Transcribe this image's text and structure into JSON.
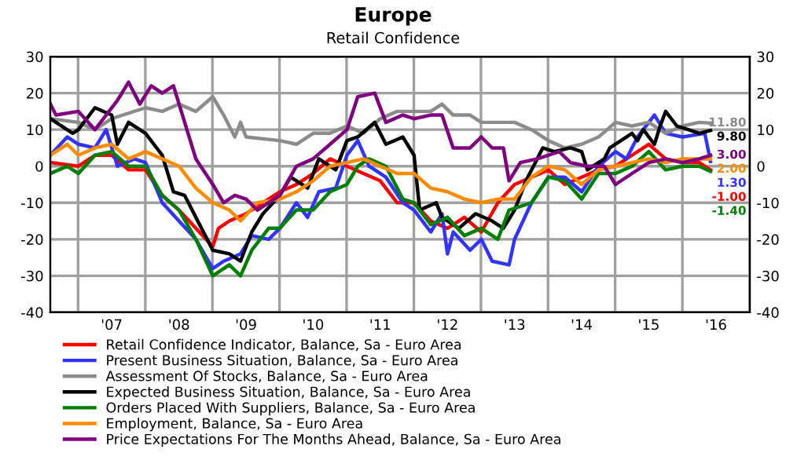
{
  "chart_data": {
    "type": "line",
    "title": "Europe",
    "subtitle": "Retail Confidence",
    "xlim": [
      "2006-08",
      "2017-01"
    ],
    "xticks": [
      {
        "value": "2007-07",
        "label": "'07"
      },
      {
        "value": "2008-07",
        "label": "'08"
      },
      {
        "value": "2009-07",
        "label": "'09"
      },
      {
        "value": "2010-07",
        "label": "'10"
      },
      {
        "value": "2011-07",
        "label": "'11"
      },
      {
        "value": "2012-07",
        "label": "'12"
      },
      {
        "value": "2013-07",
        "label": "'13"
      },
      {
        "value": "2014-07",
        "label": "'14"
      },
      {
        "value": "2015-07",
        "label": "'15"
      },
      {
        "value": "2016-07",
        "label": "'16"
      }
    ],
    "ylim": [
      -40,
      30
    ],
    "yticks": [
      -40,
      -30,
      -20,
      -10,
      0,
      10,
      20,
      30
    ],
    "y2lim": [
      -40,
      30
    ],
    "y2ticks": [
      -40,
      -30,
      -20,
      -10,
      0,
      10,
      20,
      30
    ],
    "grid": true,
    "legend": "bottom",
    "marker": "none",
    "line_style": "solid",
    "series": [
      {
        "name": "Retail Confidence Indicator, Balance, Sa - Euro Area",
        "color": "#ff0000",
        "x": [
          "2006-08",
          "2007-01",
          "2007-04",
          "2007-07",
          "2007-10",
          "2008-01",
          "2008-04",
          "2008-07",
          "2008-10",
          "2009-01",
          "2009-02",
          "2009-04",
          "2009-07",
          "2009-10",
          "2010-01",
          "2010-04",
          "2010-07",
          "2010-10",
          "2011-01",
          "2011-04",
          "2011-07",
          "2011-10",
          "2012-01",
          "2012-04",
          "2012-07",
          "2012-10",
          "2013-01",
          "2013-04",
          "2013-07",
          "2013-10",
          "2014-01",
          "2014-04",
          "2014-07",
          "2014-10",
          "2015-01",
          "2015-04",
          "2015-07",
          "2015-10",
          "2016-01",
          "2016-04",
          "2016-06"
        ],
        "values": [
          1,
          0,
          3,
          3,
          -1,
          -1,
          -8,
          -12,
          -17,
          -22,
          -17,
          -15,
          -13,
          -10,
          -7,
          -5,
          -2,
          2,
          0,
          -2,
          -4,
          -10,
          -10,
          -15,
          -17,
          -14,
          -18,
          -10,
          -5,
          -3,
          -1,
          -5,
          -3,
          -1,
          0,
          3,
          6,
          2,
          1,
          1,
          -1.0
        ],
        "value_labels": [
          null,
          null,
          null,
          null,
          null,
          null,
          null,
          null,
          null,
          null,
          null,
          null,
          null,
          null,
          null,
          null,
          null,
          null,
          null,
          null,
          null,
          null,
          null,
          null,
          null,
          null,
          null,
          null,
          null,
          null,
          null,
          null,
          null,
          null,
          null,
          null,
          null,
          null,
          null,
          null,
          "-1.00"
        ]
      },
      {
        "name": "Present Business Situation, Balance, Sa - Euro Area",
        "color": "#3333ff",
        "x": [
          "2006-08",
          "2006-11",
          "2007-01",
          "2007-04",
          "2007-06",
          "2007-08",
          "2007-11",
          "2008-01",
          "2008-04",
          "2008-07",
          "2008-10",
          "2009-01",
          "2009-03",
          "2009-06",
          "2009-08",
          "2009-11",
          "2010-01",
          "2010-04",
          "2010-06",
          "2010-08",
          "2010-11",
          "2011-01",
          "2011-03",
          "2011-05",
          "2011-08",
          "2011-11",
          "2012-01",
          "2012-04",
          "2012-06",
          "2012-07",
          "2012-08",
          "2012-11",
          "2013-01",
          "2013-03",
          "2013-06",
          "2013-07",
          "2013-10",
          "2014-01",
          "2014-04",
          "2014-07",
          "2014-10",
          "2015-01",
          "2015-03",
          "2015-05",
          "2015-08",
          "2015-10",
          "2016-01",
          "2016-05",
          "2016-06"
        ],
        "values": [
          3,
          8,
          6,
          5,
          10,
          0,
          2,
          1,
          -10,
          -15,
          -20,
          -28,
          -26,
          -24,
          -19,
          -20,
          -17,
          -10,
          -14,
          -7,
          -6,
          3,
          7,
          0,
          -3,
          -10,
          -12,
          -18,
          -13,
          -24,
          -18,
          -23,
          -20,
          -26,
          -27,
          -20,
          -10,
          -3,
          -3,
          -7,
          0,
          4,
          2,
          8,
          14,
          9,
          8,
          9,
          1.3
        ],
        "value_labels": [
          null,
          null,
          null,
          null,
          null,
          null,
          null,
          null,
          null,
          null,
          null,
          null,
          null,
          null,
          null,
          null,
          null,
          null,
          null,
          null,
          null,
          null,
          null,
          null,
          null,
          null,
          null,
          null,
          null,
          null,
          null,
          null,
          null,
          null,
          null,
          null,
          null,
          null,
          null,
          null,
          null,
          null,
          null,
          null,
          null,
          null,
          null,
          null,
          "1.30"
        ]
      },
      {
        "name": "Assessment Of Stocks, Balance, Sa - Euro Area",
        "color": "#8c8c8c",
        "x": [
          "2006-08",
          "2007-01",
          "2007-04",
          "2007-07",
          "2008-01",
          "2008-04",
          "2008-07",
          "2008-10",
          "2009-01",
          "2009-03",
          "2009-05",
          "2009-06",
          "2009-07",
          "2010-01",
          "2010-04",
          "2010-07",
          "2010-10",
          "2011-01",
          "2011-04",
          "2011-07",
          "2011-10",
          "2012-01",
          "2012-04",
          "2012-06",
          "2012-08",
          "2012-11",
          "2013-01",
          "2013-04",
          "2013-07",
          "2013-10",
          "2014-01",
          "2014-04",
          "2014-07",
          "2014-10",
          "2015-01",
          "2015-04",
          "2015-07",
          "2015-10",
          "2016-01",
          "2016-04",
          "2016-06"
        ],
        "values": [
          13,
          12,
          10,
          13,
          16,
          15,
          17,
          15,
          19,
          14,
          8,
          12,
          8,
          7,
          6,
          9,
          9,
          11,
          9,
          13,
          15,
          15,
          15,
          17,
          14,
          14,
          12,
          12,
          12,
          10,
          7,
          5,
          6,
          8,
          12,
          11,
          12,
          9,
          11,
          12,
          11.8
        ],
        "value_labels": [
          null,
          null,
          null,
          null,
          null,
          null,
          null,
          null,
          null,
          null,
          null,
          null,
          null,
          null,
          null,
          null,
          null,
          null,
          null,
          null,
          null,
          null,
          null,
          null,
          null,
          null,
          null,
          null,
          null,
          null,
          null,
          null,
          null,
          null,
          null,
          null,
          null,
          null,
          null,
          null,
          "11.80"
        ]
      },
      {
        "name": "Expected Business Situation, Balance, Sa - Euro Area",
        "color": "#000000",
        "x": [
          "2006-08",
          "2006-12",
          "2007-01",
          "2007-04",
          "2007-07",
          "2007-08",
          "2007-10",
          "2008-01",
          "2008-04",
          "2008-06",
          "2008-08",
          "2008-10",
          "2009-01",
          "2009-04",
          "2009-06",
          "2009-08",
          "2009-10",
          "2010-01",
          "2010-03",
          "2010-06",
          "2010-08",
          "2010-11",
          "2011-01",
          "2011-03",
          "2011-06",
          "2011-08",
          "2011-11",
          "2012-01",
          "2012-02",
          "2012-05",
          "2012-06",
          "2012-09",
          "2012-12",
          "2013-03",
          "2013-05",
          "2013-07",
          "2013-09",
          "2013-11",
          "2013-12",
          "2014-02",
          "2014-05",
          "2014-07",
          "2014-08",
          "2014-11",
          "2014-12",
          "2015-04",
          "2015-05",
          "2015-06",
          "2015-08",
          "2015-09",
          "2015-10",
          "2015-12",
          "2016-02",
          "2016-04",
          "2016-06"
        ],
        "values": [
          13,
          9,
          10,
          16,
          14,
          6,
          12,
          9,
          3,
          -7,
          -8,
          -14,
          -23,
          -24,
          -26,
          -18,
          -13,
          -8,
          -3,
          -6,
          2,
          -1,
          7,
          8,
          12,
          6,
          8,
          3,
          -12,
          -10,
          -14,
          -17,
          -13,
          -15,
          -17,
          -12,
          -4,
          2,
          5,
          4,
          5,
          4,
          -1,
          2,
          5,
          9,
          7,
          10,
          6,
          11,
          15,
          11,
          10,
          9,
          9.8
        ],
        "value_labels": [
          null,
          null,
          null,
          null,
          null,
          null,
          null,
          null,
          null,
          null,
          null,
          null,
          null,
          null,
          null,
          null,
          null,
          null,
          null,
          null,
          null,
          null,
          null,
          null,
          null,
          null,
          null,
          null,
          null,
          null,
          null,
          null,
          null,
          null,
          null,
          null,
          null,
          null,
          null,
          null,
          null,
          null,
          null,
          null,
          null,
          null,
          null,
          null,
          null,
          null,
          null,
          null,
          null,
          null,
          "9.80"
        ]
      },
      {
        "name": "Orders Placed With Suppliers, Balance, Sa - Euro Area",
        "color": "#008000",
        "x": [
          "2006-08",
          "2006-11",
          "2007-01",
          "2007-04",
          "2007-07",
          "2007-10",
          "2008-01",
          "2008-04",
          "2008-07",
          "2008-10",
          "2009-01",
          "2009-04",
          "2009-06",
          "2009-08",
          "2009-11",
          "2010-01",
          "2010-04",
          "2010-07",
          "2010-10",
          "2011-01",
          "2011-03",
          "2011-05",
          "2011-08",
          "2011-11",
          "2012-01",
          "2012-04",
          "2012-07",
          "2012-10",
          "2013-01",
          "2013-04",
          "2013-06",
          "2013-10",
          "2014-01",
          "2014-04",
          "2014-07",
          "2014-10",
          "2015-01",
          "2015-04",
          "2015-07",
          "2015-10",
          "2016-01",
          "2016-04",
          "2016-06"
        ],
        "values": [
          -2,
          0,
          -2,
          3,
          4,
          0,
          0,
          -8,
          -12,
          -20,
          -30,
          -27,
          -30,
          -23,
          -17,
          -17,
          -12,
          -12,
          -7,
          -5,
          0,
          2,
          0,
          -9,
          -10,
          -16,
          -14,
          -19,
          -17,
          -20,
          -12,
          -10,
          -3,
          -4,
          -9,
          -2,
          -2,
          0,
          4,
          -1,
          0,
          0,
          -1.4
        ],
        "value_labels": [
          null,
          null,
          null,
          null,
          null,
          null,
          null,
          null,
          null,
          null,
          null,
          null,
          null,
          null,
          null,
          null,
          null,
          null,
          null,
          null,
          null,
          null,
          null,
          null,
          null,
          null,
          null,
          null,
          null,
          null,
          null,
          null,
          null,
          null,
          null,
          null,
          null,
          null,
          null,
          null,
          null,
          null,
          "-1.40"
        ]
      },
      {
        "name": "Employment, Balance, Sa - Euro Area",
        "color": "#ff8c00",
        "x": [
          "2006-08",
          "2006-11",
          "2007-01",
          "2007-04",
          "2007-07",
          "2007-10",
          "2008-01",
          "2008-04",
          "2008-07",
          "2008-10",
          "2009-01",
          "2009-04",
          "2009-06",
          "2009-09",
          "2010-01",
          "2010-04",
          "2010-07",
          "2010-10",
          "2011-01",
          "2011-04",
          "2011-07",
          "2011-10",
          "2012-01",
          "2012-04",
          "2012-07",
          "2012-10",
          "2013-01",
          "2013-04",
          "2013-07",
          "2013-10",
          "2014-01",
          "2014-04",
          "2014-07",
          "2014-10",
          "2015-01",
          "2015-04",
          "2015-07",
          "2015-10",
          "2016-01",
          "2016-04",
          "2016-06"
        ],
        "values": [
          3,
          6,
          3,
          5,
          6,
          2,
          4,
          2,
          0,
          -6,
          -10,
          -12,
          -15,
          -10,
          -9,
          -7,
          -4,
          0,
          1,
          2,
          0,
          -2,
          -2,
          -6,
          -7,
          -9,
          -10,
          -9,
          -9,
          -3,
          0,
          -1,
          -5,
          -1,
          0,
          1,
          2,
          1,
          2,
          2,
          2.0
        ],
        "value_labels": [
          null,
          null,
          null,
          null,
          null,
          null,
          null,
          null,
          null,
          null,
          null,
          null,
          null,
          null,
          null,
          null,
          null,
          null,
          null,
          null,
          null,
          null,
          null,
          null,
          null,
          null,
          null,
          null,
          null,
          null,
          null,
          null,
          null,
          null,
          null,
          null,
          null,
          null,
          null,
          null,
          "2.00"
        ]
      },
      {
        "name": "Price Expectations For The Months Ahead, Balance, Sa - Euro Area",
        "color": "#800080",
        "x": [
          "2006-08",
          "2006-09",
          "2007-01",
          "2007-04",
          "2007-06",
          "2007-08",
          "2007-10",
          "2007-12",
          "2008-02",
          "2008-04",
          "2008-06",
          "2008-08",
          "2008-10",
          "2009-01",
          "2009-03",
          "2009-05",
          "2009-07",
          "2009-09",
          "2010-01",
          "2010-04",
          "2010-07",
          "2010-10",
          "2011-01",
          "2011-03",
          "2011-06",
          "2011-08",
          "2011-11",
          "2012-01",
          "2012-04",
          "2012-06",
          "2012-08",
          "2012-11",
          "2013-01",
          "2013-03",
          "2013-05",
          "2013-06",
          "2013-08",
          "2013-11",
          "2014-01",
          "2014-03",
          "2014-05",
          "2014-08",
          "2014-11",
          "2015-01",
          "2015-04",
          "2015-07",
          "2015-10",
          "2016-01",
          "2016-04",
          "2016-06"
        ],
        "values": [
          17,
          14,
          15,
          10,
          14,
          18,
          23,
          17,
          22,
          20,
          22,
          12,
          2,
          -5,
          -10,
          -8,
          -9,
          -12,
          -8,
          0,
          2,
          6,
          10,
          19,
          20,
          12,
          14,
          13,
          14,
          14,
          5,
          5,
          8,
          5,
          5,
          -4,
          1,
          2,
          3,
          4,
          1,
          0,
          0,
          -5,
          -2,
          1,
          2,
          1,
          2,
          3.0
        ],
        "value_labels": [
          null,
          null,
          null,
          null,
          null,
          null,
          null,
          null,
          null,
          null,
          null,
          null,
          null,
          null,
          null,
          null,
          null,
          null,
          null,
          null,
          null,
          null,
          null,
          null,
          null,
          null,
          null,
          null,
          null,
          null,
          null,
          null,
          null,
          null,
          null,
          null,
          null,
          null,
          null,
          null,
          null,
          null,
          null,
          null,
          null,
          null,
          null,
          null,
          null,
          "3.00"
        ]
      }
    ]
  }
}
